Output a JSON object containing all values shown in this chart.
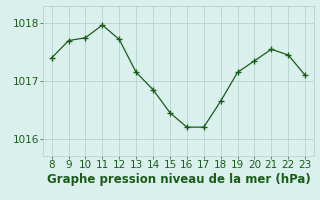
{
  "x": [
    8,
    9,
    10,
    11,
    12,
    13,
    14,
    15,
    16,
    17,
    18,
    19,
    20,
    21,
    22,
    23
  ],
  "y": [
    1017.4,
    1017.7,
    1017.75,
    1017.97,
    1017.72,
    1017.15,
    1016.85,
    1016.45,
    1016.2,
    1016.2,
    1016.65,
    1017.15,
    1017.35,
    1017.55,
    1017.45,
    1017.1
  ],
  "line_color": "#1a5c1a",
  "marker": "+",
  "bg_color": "#daf0ec",
  "grid_color": "#b0ceca",
  "xlabel": "Graphe pression niveau de la mer (hPa)",
  "xlabel_color": "#1a5c1a",
  "yticks": [
    1016,
    1017,
    1018
  ],
  "ylim": [
    1015.7,
    1018.3
  ],
  "xlim": [
    7.5,
    23.5
  ],
  "xticks": [
    8,
    9,
    10,
    11,
    12,
    13,
    14,
    15,
    16,
    17,
    18,
    19,
    20,
    21,
    22,
    23
  ],
  "tick_color": "#1a5c1a",
  "tick_fontsize": 7.5,
  "xlabel_fontsize": 8.5
}
